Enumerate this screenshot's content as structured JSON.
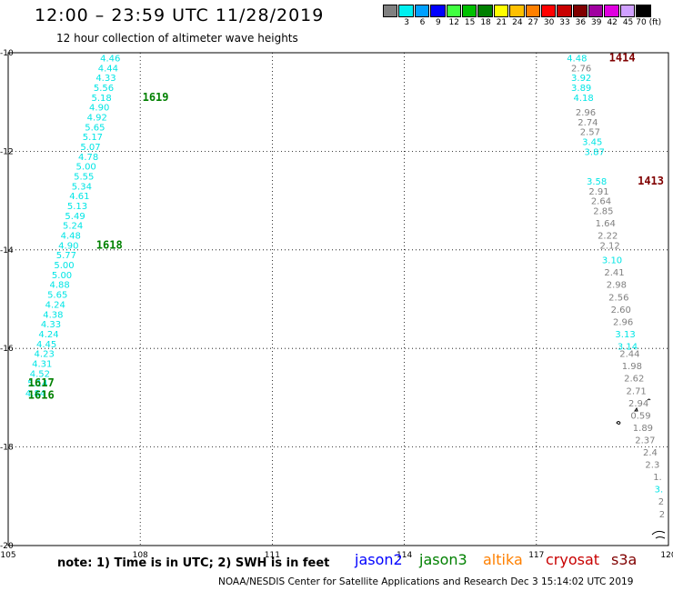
{
  "header": {
    "title": "12:00 – 23:59 UTC 11/28/2019",
    "subtitle": "12 hour collection of altimeter wave heights"
  },
  "color_scale": {
    "labels": [
      "3",
      "6",
      "9",
      "12",
      "15",
      "18",
      "21",
      "24",
      "27",
      "30",
      "33",
      "36",
      "39",
      "42",
      "45",
      "70 (ft)"
    ],
    "colors": [
      "#808080",
      "#00f0f0",
      "#00a0ff",
      "#0000ff",
      "#40ff40",
      "#00c000",
      "#008000",
      "#ffff00",
      "#ffc000",
      "#ff8000",
      "#ff0000",
      "#c80000",
      "#800000",
      "#a000a0",
      "#e000e0",
      "#d0a0ff",
      "#000000"
    ]
  },
  "map": {
    "lon_ticks": [
      "105",
      "108",
      "111",
      "114",
      "117",
      "120"
    ],
    "lat_ticks": [
      "-10",
      "-12",
      "-14",
      "-16",
      "-18",
      "-20"
    ],
    "lon_range": [
      105,
      120
    ],
    "lat_range": [
      -20,
      -10
    ]
  },
  "tracks": [
    {
      "name": "west-track",
      "color": "#00e5e5",
      "points": [
        {
          "lon": 107.55,
          "lat": -10.1,
          "swh": "4.46"
        },
        {
          "lon": 107.5,
          "lat": -10.3,
          "swh": "4.44"
        },
        {
          "lon": 107.45,
          "lat": -10.5,
          "swh": "4.33"
        },
        {
          "lon": 107.4,
          "lat": -10.7,
          "swh": "5.56"
        },
        {
          "lon": 107.35,
          "lat": -10.9,
          "swh": "5.18"
        },
        {
          "lon": 107.3,
          "lat": -11.1,
          "swh": "4.90"
        },
        {
          "lon": 107.25,
          "lat": -11.3,
          "swh": "4.92"
        },
        {
          "lon": 107.2,
          "lat": -11.5,
          "swh": "5.65"
        },
        {
          "lon": 107.15,
          "lat": -11.7,
          "swh": "5.17"
        },
        {
          "lon": 107.1,
          "lat": -11.9,
          "swh": "5.07"
        },
        {
          "lon": 107.05,
          "lat": -12.1,
          "swh": "4.78"
        },
        {
          "lon": 107.0,
          "lat": -12.3,
          "swh": "5.00"
        },
        {
          "lon": 106.95,
          "lat": -12.5,
          "swh": "5.55"
        },
        {
          "lon": 106.9,
          "lat": -12.7,
          "swh": "5.34"
        },
        {
          "lon": 106.85,
          "lat": -12.9,
          "swh": "4.61"
        },
        {
          "lon": 106.8,
          "lat": -13.1,
          "swh": "5.13"
        },
        {
          "lon": 106.75,
          "lat": -13.3,
          "swh": "5.49"
        },
        {
          "lon": 106.7,
          "lat": -13.5,
          "swh": "5.24"
        },
        {
          "lon": 106.65,
          "lat": -13.7,
          "swh": "4.48"
        },
        {
          "lon": 106.6,
          "lat": -13.9,
          "swh": "4.90"
        },
        {
          "lon": 106.55,
          "lat": -14.1,
          "swh": "5.77"
        },
        {
          "lon": 106.5,
          "lat": -14.3,
          "swh": "5.00"
        },
        {
          "lon": 106.45,
          "lat": -14.5,
          "swh": "5.00"
        },
        {
          "lon": 106.4,
          "lat": -14.7,
          "swh": "4.88"
        },
        {
          "lon": 106.35,
          "lat": -14.9,
          "swh": "5.65"
        },
        {
          "lon": 106.3,
          "lat": -15.1,
          "swh": "4.24"
        },
        {
          "lon": 106.25,
          "lat": -15.3,
          "swh": "4.38"
        },
        {
          "lon": 106.2,
          "lat": -15.5,
          "swh": "4.33"
        },
        {
          "lon": 106.15,
          "lat": -15.7,
          "swh": "4.24"
        },
        {
          "lon": 106.1,
          "lat": -15.9,
          "swh": "4.45"
        },
        {
          "lon": 106.05,
          "lat": -16.1,
          "swh": "4.23"
        },
        {
          "lon": 106.0,
          "lat": -16.3,
          "swh": "4.31"
        },
        {
          "lon": 105.95,
          "lat": -16.5,
          "swh": "4.52"
        },
        {
          "lon": 105.9,
          "lat": -16.7,
          "swh": "5.14"
        },
        {
          "lon": 105.85,
          "lat": -16.9,
          "swh": "4.84"
        }
      ]
    },
    {
      "name": "east-track",
      "color": "#00e5e5",
      "points": [
        {
          "lon": 118.15,
          "lat": -10.1,
          "swh": "4.48",
          "c": "#00e5e5"
        },
        {
          "lon": 118.25,
          "lat": -10.3,
          "swh": "2.76",
          "c": "#808080"
        },
        {
          "lon": 118.25,
          "lat": -10.5,
          "swh": "3.92",
          "c": "#00e5e5"
        },
        {
          "lon": 118.25,
          "lat": -10.7,
          "swh": "3.89",
          "c": "#00e5e5"
        },
        {
          "lon": 118.3,
          "lat": -10.9,
          "swh": "4.18",
          "c": "#00e5e5"
        },
        {
          "lon": 118.35,
          "lat": -11.2,
          "swh": "2.96",
          "c": "#808080"
        },
        {
          "lon": 118.4,
          "lat": -11.4,
          "swh": "2.74",
          "c": "#808080"
        },
        {
          "lon": 118.45,
          "lat": -11.6,
          "swh": "2.57",
          "c": "#808080"
        },
        {
          "lon": 118.5,
          "lat": -11.8,
          "swh": "3.45",
          "c": "#00e5e5"
        },
        {
          "lon": 118.55,
          "lat": -12.0,
          "swh": "3.87",
          "c": "#00e5e5"
        },
        {
          "lon": 118.6,
          "lat": -12.6,
          "swh": "3.58",
          "c": "#00e5e5"
        },
        {
          "lon": 118.65,
          "lat": -12.8,
          "swh": "2.91",
          "c": "#808080"
        },
        {
          "lon": 118.7,
          "lat": -13.0,
          "swh": "2.64",
          "c": "#808080"
        },
        {
          "lon": 118.75,
          "lat": -13.2,
          "swh": "2.85",
          "c": "#808080"
        },
        {
          "lon": 118.8,
          "lat": -13.45,
          "swh": "1.64",
          "c": "#808080"
        },
        {
          "lon": 118.85,
          "lat": -13.7,
          "swh": "2.22",
          "c": "#808080"
        },
        {
          "lon": 118.9,
          "lat": -13.9,
          "swh": "2.12",
          "c": "#808080"
        },
        {
          "lon": 118.95,
          "lat": -14.2,
          "swh": "3.10",
          "c": "#00e5e5"
        },
        {
          "lon": 119.0,
          "lat": -14.45,
          "swh": "2.41",
          "c": "#808080"
        },
        {
          "lon": 119.05,
          "lat": -14.7,
          "swh": "2.98",
          "c": "#808080"
        },
        {
          "lon": 119.1,
          "lat": -14.95,
          "swh": "2.56",
          "c": "#808080"
        },
        {
          "lon": 119.15,
          "lat": -15.2,
          "swh": "2.60",
          "c": "#808080"
        },
        {
          "lon": 119.2,
          "lat": -15.45,
          "swh": "2.96",
          "c": "#808080"
        },
        {
          "lon": 119.25,
          "lat": -15.7,
          "swh": "3.13",
          "c": "#00e5e5"
        },
        {
          "lon": 119.3,
          "lat": -15.95,
          "swh": "3.14",
          "c": "#00e5e5"
        },
        {
          "lon": 119.35,
          "lat": -16.1,
          "swh": "2.44",
          "c": "#808080"
        },
        {
          "lon": 119.4,
          "lat": -16.35,
          "swh": "1.98",
          "c": "#808080"
        },
        {
          "lon": 119.45,
          "lat": -16.6,
          "swh": "2.62",
          "c": "#808080"
        },
        {
          "lon": 119.5,
          "lat": -16.85,
          "swh": "2.71",
          "c": "#808080"
        },
        {
          "lon": 119.55,
          "lat": -17.1,
          "swh": "2.94",
          "c": "#808080"
        },
        {
          "lon": 119.6,
          "lat": -17.35,
          "swh": "0.59",
          "c": "#808080"
        },
        {
          "lon": 119.65,
          "lat": -17.6,
          "swh": "1.89",
          "c": "#808080"
        },
        {
          "lon": 119.7,
          "lat": -17.85,
          "swh": "2.37",
          "c": "#808080"
        },
        {
          "lon": 119.75,
          "lat": -18.1,
          "swh": "2.4",
          "c": "#808080"
        },
        {
          "lon": 119.8,
          "lat": -18.35,
          "swh": "2.3",
          "c": "#808080"
        },
        {
          "lon": 119.85,
          "lat": -18.6,
          "swh": "1.",
          "c": "#808080"
        },
        {
          "lon": 119.88,
          "lat": -18.85,
          "swh": "3.",
          "c": "#00e5e5"
        },
        {
          "lon": 119.9,
          "lat": -19.1,
          "swh": "2",
          "c": "#808080"
        },
        {
          "lon": 119.92,
          "lat": -19.35,
          "swh": "2",
          "c": "#808080"
        }
      ]
    }
  ],
  "time_labels": [
    {
      "text": "1619",
      "lon": 108.05,
      "lat": -10.9,
      "c": "#008000"
    },
    {
      "text": "1618",
      "lon": 107.0,
      "lat": -13.9,
      "c": "#008000"
    },
    {
      "text": "1617",
      "lon": 105.45,
      "lat": -16.7,
      "c": "#008000"
    },
    {
      "text": "1616",
      "lon": 105.45,
      "lat": -16.95,
      "c": "#008000"
    },
    {
      "text": "1414",
      "lon": 118.65,
      "lat": -10.1,
      "c": "#800000"
    },
    {
      "text": "1413",
      "lon": 119.3,
      "lat": -12.6,
      "c": "#800000"
    }
  ],
  "footer": {
    "note": "note: 1) Time is in UTC; 2) SWH is in feet",
    "satellites": [
      {
        "name": "jason2",
        "color": "#0000ff"
      },
      {
        "name": "jason3",
        "color": "#008000"
      },
      {
        "name": "altika",
        "color": "#ff8000"
      },
      {
        "name": "cryosat",
        "color": "#c80000"
      },
      {
        "name": "s3a",
        "color": "#800000"
      }
    ],
    "credit": "NOAA/NESDIS Center for Satellite Applications and Research    Dec  3 15:14:02 UTC 2019"
  }
}
